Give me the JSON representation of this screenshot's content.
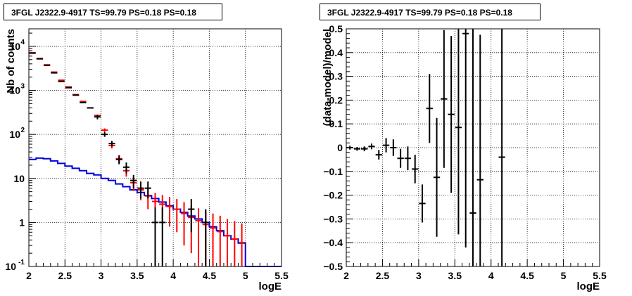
{
  "chart_data": [
    {
      "type": "histogram",
      "title": "3FGL J2322.9-4917 TS=99.79 PS=0.18 PS=0.18",
      "xlabel": "logE",
      "ylabel": "Nb of counts",
      "xlim": [
        2,
        5.5
      ],
      "ylim": [
        0.1,
        25000
      ],
      "yscale": "log",
      "grid": true,
      "xticks": [
        "2",
        "2.5",
        "3",
        "3.5",
        "4",
        "4.5",
        "5",
        "5.5"
      ],
      "yticks": [
        {
          "value": 0.1,
          "base": "10",
          "exp": "-1"
        },
        {
          "value": 1,
          "base": "1",
          "exp": ""
        },
        {
          "value": 10,
          "base": "10",
          "exp": ""
        },
        {
          "value": 100,
          "base": "10",
          "exp": "2"
        },
        {
          "value": 1000,
          "base": "10",
          "exp": "3"
        },
        {
          "value": 10000,
          "base": "10",
          "exp": "4"
        }
      ],
      "series": [
        {
          "role": "data",
          "color": "#000000",
          "points": [
            [
              2.05,
              7000,
              0
            ],
            [
              2.15,
              5200,
              0
            ],
            [
              2.25,
              3700,
              0
            ],
            [
              2.35,
              2500,
              0
            ],
            [
              2.45,
              1600,
              0
            ],
            [
              2.55,
              1150,
              0
            ],
            [
              2.65,
              780,
              0
            ],
            [
              2.75,
              530,
              0
            ],
            [
              2.85,
              400,
              0
            ],
            [
              2.95,
              250,
              30
            ],
            [
              3.05,
              100,
              12
            ],
            [
              3.15,
              62,
              9
            ],
            [
              3.25,
              27,
              6
            ],
            [
              3.35,
              18,
              5
            ],
            [
              3.45,
              9,
              3
            ],
            [
              3.55,
              6,
              2.5
            ],
            [
              3.65,
              6,
              2.5
            ],
            [
              3.75,
              1,
              1.2
            ],
            [
              3.85,
              1,
              1.2
            ],
            [
              4.25,
              2,
              1.4
            ],
            [
              4.45,
              1,
              1
            ]
          ]
        },
        {
          "role": "model",
          "color": "#ff0000",
          "points": [
            [
              2.05,
              7200,
              0
            ],
            [
              2.15,
              5300,
              0
            ],
            [
              2.25,
              3800,
              0
            ],
            [
              2.35,
              2600,
              0
            ],
            [
              2.45,
              1700,
              0
            ],
            [
              2.55,
              1200,
              0
            ],
            [
              2.65,
              800,
              0
            ],
            [
              2.75,
              560,
              0
            ],
            [
              2.85,
              400,
              0
            ],
            [
              2.95,
              270,
              0
            ],
            [
              3.05,
              125,
              12
            ],
            [
              3.15,
              56,
              8
            ],
            [
              3.25,
              28,
              6
            ],
            [
              3.35,
              15,
              4
            ],
            [
              3.45,
              8,
              2.8
            ],
            [
              3.55,
              5.5,
              2.3
            ],
            [
              3.65,
              4,
              2
            ],
            [
              3.75,
              3,
              1.7
            ],
            [
              3.85,
              2.6,
              1.6
            ],
            [
              3.95,
              2.3,
              1.5
            ],
            [
              4.05,
              2.0,
              1.4
            ],
            [
              4.15,
              1.6,
              1.3
            ],
            [
              4.25,
              1.3,
              1.1
            ],
            [
              4.35,
              1.1,
              1
            ],
            [
              4.45,
              0.9,
              0.95
            ],
            [
              4.55,
              0.75,
              0.85
            ],
            [
              4.65,
              0.62,
              0.8
            ],
            [
              4.75,
              0.5,
              0.7
            ],
            [
              4.85,
              0.42,
              0.65
            ],
            [
              4.95,
              0.35,
              0.6
            ]
          ]
        },
        {
          "role": "background",
          "color": "#0000dd",
          "x_edges": [
            2.0,
            2.1,
            2.2,
            2.3,
            2.4,
            2.5,
            2.6,
            2.7,
            2.8,
            2.9,
            3.0,
            3.1,
            3.2,
            3.3,
            3.4,
            3.5,
            3.6,
            3.7,
            3.8,
            3.9,
            4.0,
            4.1,
            4.2,
            4.3,
            4.4,
            4.5,
            4.6,
            4.7,
            4.8,
            4.9,
            5.0,
            5.1,
            5.2,
            5.3,
            5.4,
            5.5
          ],
          "values": [
            27,
            29,
            28,
            25,
            22,
            19,
            17,
            15,
            13,
            12,
            10,
            9,
            7.5,
            6.5,
            5.5,
            4.8,
            4.1,
            3.5,
            2.9,
            2.4,
            2.0,
            1.7,
            1.4,
            1.2,
            1.0,
            0.8,
            0.65,
            0.5,
            0.42,
            0.34,
            0.1,
            0.1,
            0.1,
            0.1,
            0.1
          ]
        }
      ]
    },
    {
      "type": "scatter",
      "title": "3FGL J2322.9-4917 TS=99.79 PS=0.18 PS=0.18",
      "xlabel": "logE",
      "ylabel": "(data-model)/model",
      "xlim": [
        2,
        5.5
      ],
      "ylim": [
        -0.5,
        0.5
      ],
      "grid": true,
      "xticks": [
        "2",
        "2.5",
        "3",
        "3.5",
        "4",
        "4.5",
        "5",
        "5.5"
      ],
      "yticks": [
        "−0.5",
        "−0.4",
        "−0.3",
        "−0.2",
        "−0.1",
        "0",
        "0.1",
        "0.2",
        "0.3",
        "0.4",
        "0.5"
      ],
      "points": [
        [
          2.05,
          0,
          0.008
        ],
        [
          2.15,
          -0.005,
          0.008
        ],
        [
          2.25,
          -0.005,
          0.01
        ],
        [
          2.35,
          0.005,
          0.012
        ],
        [
          2.45,
          -0.03,
          0.02
        ],
        [
          2.55,
          0.01,
          0.03
        ],
        [
          2.65,
          0,
          0.035
        ],
        [
          2.75,
          -0.045,
          0.04
        ],
        [
          2.85,
          -0.045,
          0.05
        ],
        [
          2.95,
          -0.09,
          0.06
        ],
        [
          3.05,
          -0.235,
          0.08
        ],
        [
          3.15,
          0.165,
          0.145
        ],
        [
          3.25,
          -0.125,
          0.25
        ],
        [
          3.35,
          0.205,
          0.29
        ],
        [
          3.45,
          0.14,
          0.33
        ],
        [
          3.55,
          0.085,
          0.45
        ],
        [
          3.65,
          0.48,
          0.9
        ],
        [
          3.75,
          -0.275,
          0.85
        ],
        [
          3.85,
          -0.135,
          0.61
        ],
        [
          4.15,
          -0.04,
          0.9
        ]
      ]
    }
  ]
}
